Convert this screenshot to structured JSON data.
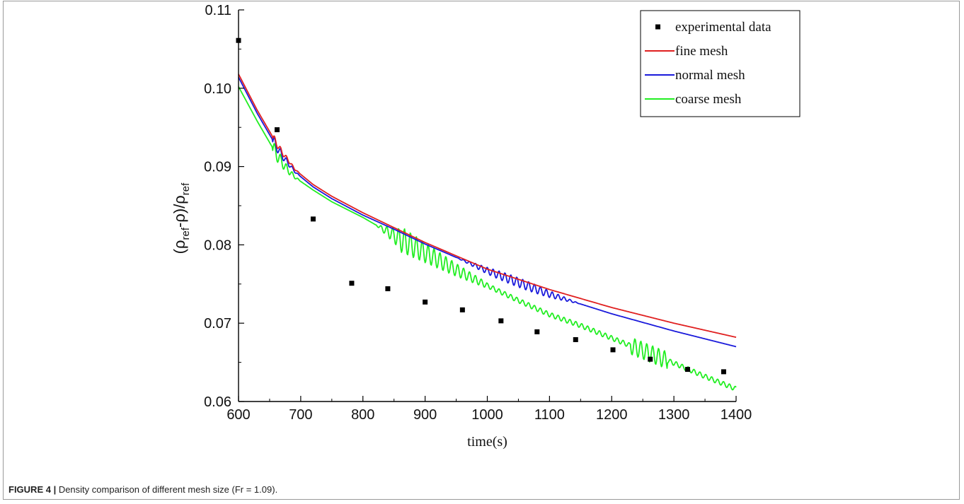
{
  "chart_data": {
    "type": "line",
    "xlabel": "time(s)",
    "ylabel_parts": [
      "(ρ",
      "ref",
      "-ρ)/ρ",
      "ref"
    ],
    "xlim": [
      600,
      1400
    ],
    "ylim": [
      0.06,
      0.11
    ],
    "x_ticks": [
      600,
      700,
      800,
      900,
      1000,
      1100,
      1200,
      1300,
      1400
    ],
    "y_ticks": [
      "0.06",
      "0.07",
      "0.08",
      "0.09",
      "0.10",
      "0.11"
    ],
    "legend": {
      "position": "top-right",
      "entries": [
        {
          "label": "experimental data",
          "marker": "square",
          "color": "#000000"
        },
        {
          "label": "fine mesh",
          "marker": "line",
          "color": "#e02020"
        },
        {
          "label": "normal mesh",
          "marker": "line",
          "color": "#1a1adb"
        },
        {
          "label": "coarse mesh",
          "marker": "line",
          "color": "#22ee22"
        }
      ]
    },
    "series": [
      {
        "name": "experimental data",
        "kind": "scatter",
        "color": "#000000",
        "x": [
          600,
          662,
          720,
          782,
          840,
          900,
          960,
          1022,
          1080,
          1142,
          1202,
          1262,
          1322,
          1380
        ],
        "y": [
          0.1061,
          0.0947,
          0.0833,
          0.0751,
          0.0744,
          0.0727,
          0.0717,
          0.0703,
          0.0689,
          0.0679,
          0.0666,
          0.0654,
          0.0641,
          0.0638
        ]
      },
      {
        "name": "fine mesh",
        "kind": "line",
        "color": "#e02020",
        "x": [
          600,
          630,
          660,
          670,
          680,
          690,
          700,
          720,
          750,
          800,
          850,
          900,
          950,
          1000,
          1100,
          1200,
          1300,
          1400
        ],
        "y": [
          0.1018,
          0.0972,
          0.0931,
          0.0918,
          0.0908,
          0.0897,
          0.089,
          0.0877,
          0.0862,
          0.0841,
          0.0822,
          0.0803,
          0.0786,
          0.0769,
          0.0743,
          0.072,
          0.07,
          0.0682
        ]
      },
      {
        "name": "normal mesh",
        "kind": "line",
        "color": "#1a1adb",
        "x": [
          600,
          630,
          660,
          670,
          680,
          690,
          700,
          720,
          750,
          800,
          850,
          900,
          950,
          1000,
          1100,
          1200,
          1300,
          1400
        ],
        "y": [
          0.1014,
          0.0968,
          0.0927,
          0.0914,
          0.0904,
          0.0894,
          0.0887,
          0.0874,
          0.0859,
          0.0838,
          0.082,
          0.0801,
          0.0784,
          0.0767,
          0.0737,
          0.0712,
          0.069,
          0.067
        ]
      },
      {
        "name": "coarse mesh",
        "kind": "line",
        "color": "#22ee22",
        "x": [
          600,
          630,
          660,
          670,
          680,
          690,
          700,
          720,
          750,
          800,
          850,
          900,
          950,
          1000,
          1050,
          1100,
          1150,
          1200,
          1250,
          1300,
          1350,
          1400
        ],
        "y": [
          0.1002,
          0.0958,
          0.0917,
          0.0905,
          0.0895,
          0.0887,
          0.0881,
          0.087,
          0.0855,
          0.0835,
          0.0812,
          0.079,
          0.0768,
          0.0748,
          0.0729,
          0.0711,
          0.0697,
          0.0681,
          0.0665,
          0.0649,
          0.0632,
          0.0616
        ]
      }
    ]
  },
  "caption": {
    "label": "FIGURE 4 |",
    "text": " Density comparison of different mesh size (Fr = 1.09)."
  }
}
